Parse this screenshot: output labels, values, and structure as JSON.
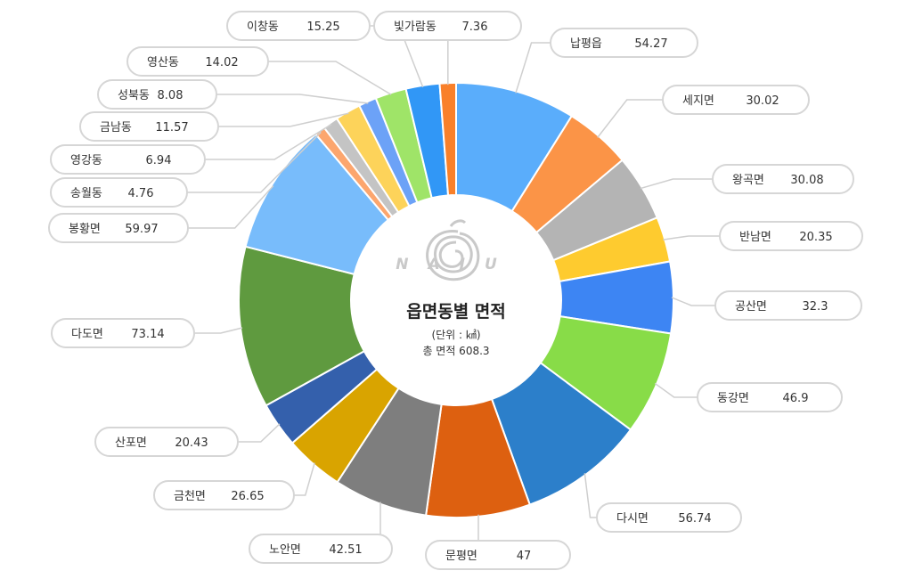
{
  "logo_text": "NAJU",
  "chart_data": {
    "type": "pie",
    "donut": true,
    "center_title": "읍면동별 면적",
    "center_unit": "(단위 : ㎢)",
    "center_total": "총 면적 608.3",
    "total": 608.3,
    "slices": [
      {
        "label": "납평읍",
        "value": 54.27,
        "value_text": "54.27",
        "color": "#5aadfb"
      },
      {
        "label": "세지면",
        "value": 30.02,
        "value_text": "30.02",
        "color": "#fb9447"
      },
      {
        "label": "왕곡면",
        "value": 30.08,
        "value_text": "30.08",
        "color": "#b4b4b4"
      },
      {
        "label": "반남면",
        "value": 20.35,
        "value_text": "20.35",
        "color": "#fecb2f"
      },
      {
        "label": "공산면",
        "value": 32.3,
        "value_text": "32.3",
        "color": "#3d85f3"
      },
      {
        "label": "동강면",
        "value": 46.9,
        "value_text": "46.9",
        "color": "#88dc48"
      },
      {
        "label": "다시면",
        "value": 56.74,
        "value_text": "56.74",
        "color": "#2c7fca"
      },
      {
        "label": "문평면",
        "value": 47,
        "value_text": "47",
        "color": "#dd6010"
      },
      {
        "label": "노안면",
        "value": 42.51,
        "value_text": "42.51",
        "color": "#7e7e7e"
      },
      {
        "label": "금천면",
        "value": 26.65,
        "value_text": "26.65",
        "color": "#d9a400"
      },
      {
        "label": "산포면",
        "value": 20.43,
        "value_text": "20.43",
        "color": "#3460ac"
      },
      {
        "label": "다도면",
        "value": 73.14,
        "value_text": "73.14",
        "color": "#5f9a3f"
      },
      {
        "label": "봉황면",
        "value": 59.97,
        "value_text": "59.97",
        "color": "#78bcfb"
      },
      {
        "label": "송월동",
        "value": 4.76,
        "value_text": "4.76",
        "color": "#fca66e"
      },
      {
        "label": "영강동",
        "value": 6.94,
        "value_text": "6.94",
        "color": "#c4c4c4"
      },
      {
        "label": "금남동",
        "value": 11.57,
        "value_text": "11.57",
        "color": "#fdd35a"
      },
      {
        "label": "성북동",
        "value": 8.08,
        "value_text": "8.08",
        "color": "#6ca2f7"
      },
      {
        "label": "영산동",
        "value": 14.02,
        "value_text": "14.02",
        "color": "#9fe468"
      },
      {
        "label": "이창동",
        "value": 15.25,
        "value_text": "15.25",
        "color": "#3197f6"
      },
      {
        "label": "빛가람동",
        "value": 7.36,
        "value_text": "7.36",
        "color": "#f9802a"
      }
    ]
  }
}
